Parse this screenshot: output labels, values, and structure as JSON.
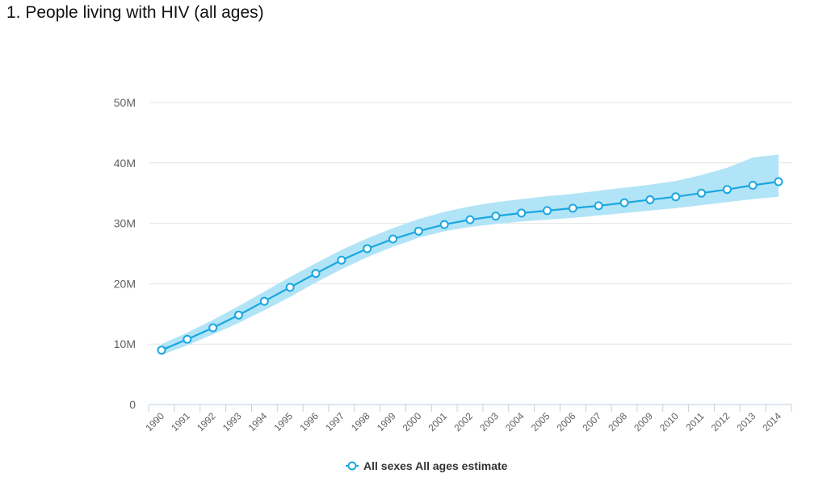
{
  "page": {
    "title": "1. People living with HIV (all ages)"
  },
  "colors": {
    "line": "#1aa7e0",
    "band": "#b2e4f7",
    "grid": "#e3e3e3",
    "axis": "#c0d0e0",
    "marker_fill": "#ffffff"
  },
  "chart_data": {
    "type": "line",
    "title": "1. People living with HIV (all ages)",
    "xlabel": "",
    "ylabel": "",
    "ylim": [
      0,
      50000000
    ],
    "yticks": [
      {
        "value": 0,
        "label": "0"
      },
      {
        "value": 10000000,
        "label": "10M"
      },
      {
        "value": 20000000,
        "label": "20M"
      },
      {
        "value": 30000000,
        "label": "30M"
      },
      {
        "value": 40000000,
        "label": "40M"
      },
      {
        "value": 50000000,
        "label": "50M"
      }
    ],
    "grid": true,
    "legend_position": "bottom-center",
    "categories": [
      "1990",
      "1991",
      "1992",
      "1993",
      "1994",
      "1995",
      "1996",
      "1997",
      "1998",
      "1999",
      "2000",
      "2001",
      "2002",
      "2003",
      "2004",
      "2005",
      "2006",
      "2007",
      "2008",
      "2009",
      "2010",
      "2011",
      "2012",
      "2013",
      "2014"
    ],
    "series": [
      {
        "name": "All sexes All ages estimate",
        "values": [
          9000000,
          10800000,
          12700000,
          14800000,
          17100000,
          19400000,
          21700000,
          23900000,
          25800000,
          27400000,
          28700000,
          29800000,
          30600000,
          31200000,
          31700000,
          32100000,
          32500000,
          32900000,
          33400000,
          33900000,
          34400000,
          35000000,
          35600000,
          36300000,
          36900000
        ],
        "lower": [
          8200000,
          9800000,
          11600000,
          13500000,
          15600000,
          17800000,
          20200000,
          22400000,
          24400000,
          26100000,
          27600000,
          28700000,
          29400000,
          29900000,
          30300000,
          30600000,
          30900000,
          31300000,
          31700000,
          32100000,
          32500000,
          33000000,
          33500000,
          34000000,
          34400000
        ],
        "upper": [
          10000000,
          11900000,
          14000000,
          16300000,
          18700000,
          21100000,
          23400000,
          25600000,
          27500000,
          29200000,
          30700000,
          31900000,
          32800000,
          33500000,
          34000000,
          34500000,
          34900000,
          35400000,
          35900000,
          36400000,
          37000000,
          38000000,
          39200000,
          40900000,
          41400000
        ]
      }
    ]
  }
}
